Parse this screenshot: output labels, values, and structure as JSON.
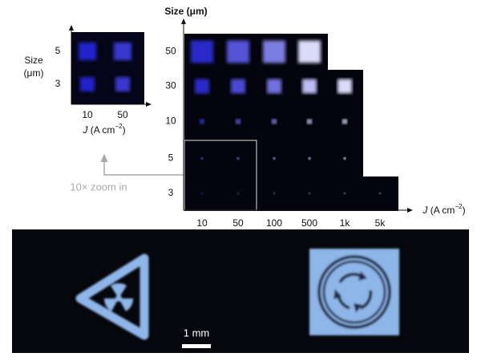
{
  "inset": {
    "y_axis_label": [
      "Size",
      "(μm)"
    ],
    "row_labels": [
      "5",
      "3"
    ],
    "column_labels": [
      "10",
      "50"
    ],
    "x_axis_label": [
      "J",
      " (A cm",
      "−2",
      ")"
    ]
  },
  "main": {
    "y_axis_label": "Size (μm)",
    "row_labels": [
      "50",
      "30",
      "10",
      "5",
      "3"
    ],
    "column_labels": [
      "10",
      "50",
      "100",
      "500",
      "1k",
      "5k"
    ],
    "x_axis_label": [
      "J",
      " (A cm",
      "−2",
      ")"
    ]
  },
  "annotation": "10× zoom in",
  "scale_bar": "1 mm"
}
